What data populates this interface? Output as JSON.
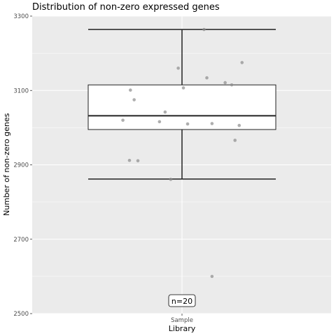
{
  "chart_data": {
    "type": "boxplot",
    "title": "Distribution of non-zero expressed genes",
    "xlabel": "Library",
    "ylabel": "Number of non-zero genes",
    "categories": [
      "Sample"
    ],
    "ylim": [
      2500,
      3300
    ],
    "yticks": [
      2500,
      2700,
      2900,
      3100,
      3300
    ],
    "grid": true,
    "box": {
      "whisker_low": 2862,
      "q1": 2995,
      "median": 3032,
      "q3": 3115,
      "whisker_high": 3264
    },
    "points": [
      {
        "x": 0.235,
        "y": 3264
      },
      {
        "x": 0.64,
        "y": 3175
      },
      {
        "x": -0.04,
        "y": 3160
      },
      {
        "x": 0.265,
        "y": 3134
      },
      {
        "x": 0.46,
        "y": 3121
      },
      {
        "x": 0.53,
        "y": 3115
      },
      {
        "x": 0.015,
        "y": 3107
      },
      {
        "x": -0.55,
        "y": 3101
      },
      {
        "x": -0.51,
        "y": 3075
      },
      {
        "x": -0.18,
        "y": 3042
      },
      {
        "x": -0.63,
        "y": 3020
      },
      {
        "x": -0.24,
        "y": 3016
      },
      {
        "x": 0.06,
        "y": 3010
      },
      {
        "x": 0.32,
        "y": 3011
      },
      {
        "x": 0.61,
        "y": 3006
      },
      {
        "x": 0.565,
        "y": 2966
      },
      {
        "x": -0.56,
        "y": 2912
      },
      {
        "x": -0.47,
        "y": 2911
      },
      {
        "x": -0.12,
        "y": 2861
      },
      {
        "x": 0.32,
        "y": 2600
      }
    ],
    "annotation": "n=20"
  }
}
